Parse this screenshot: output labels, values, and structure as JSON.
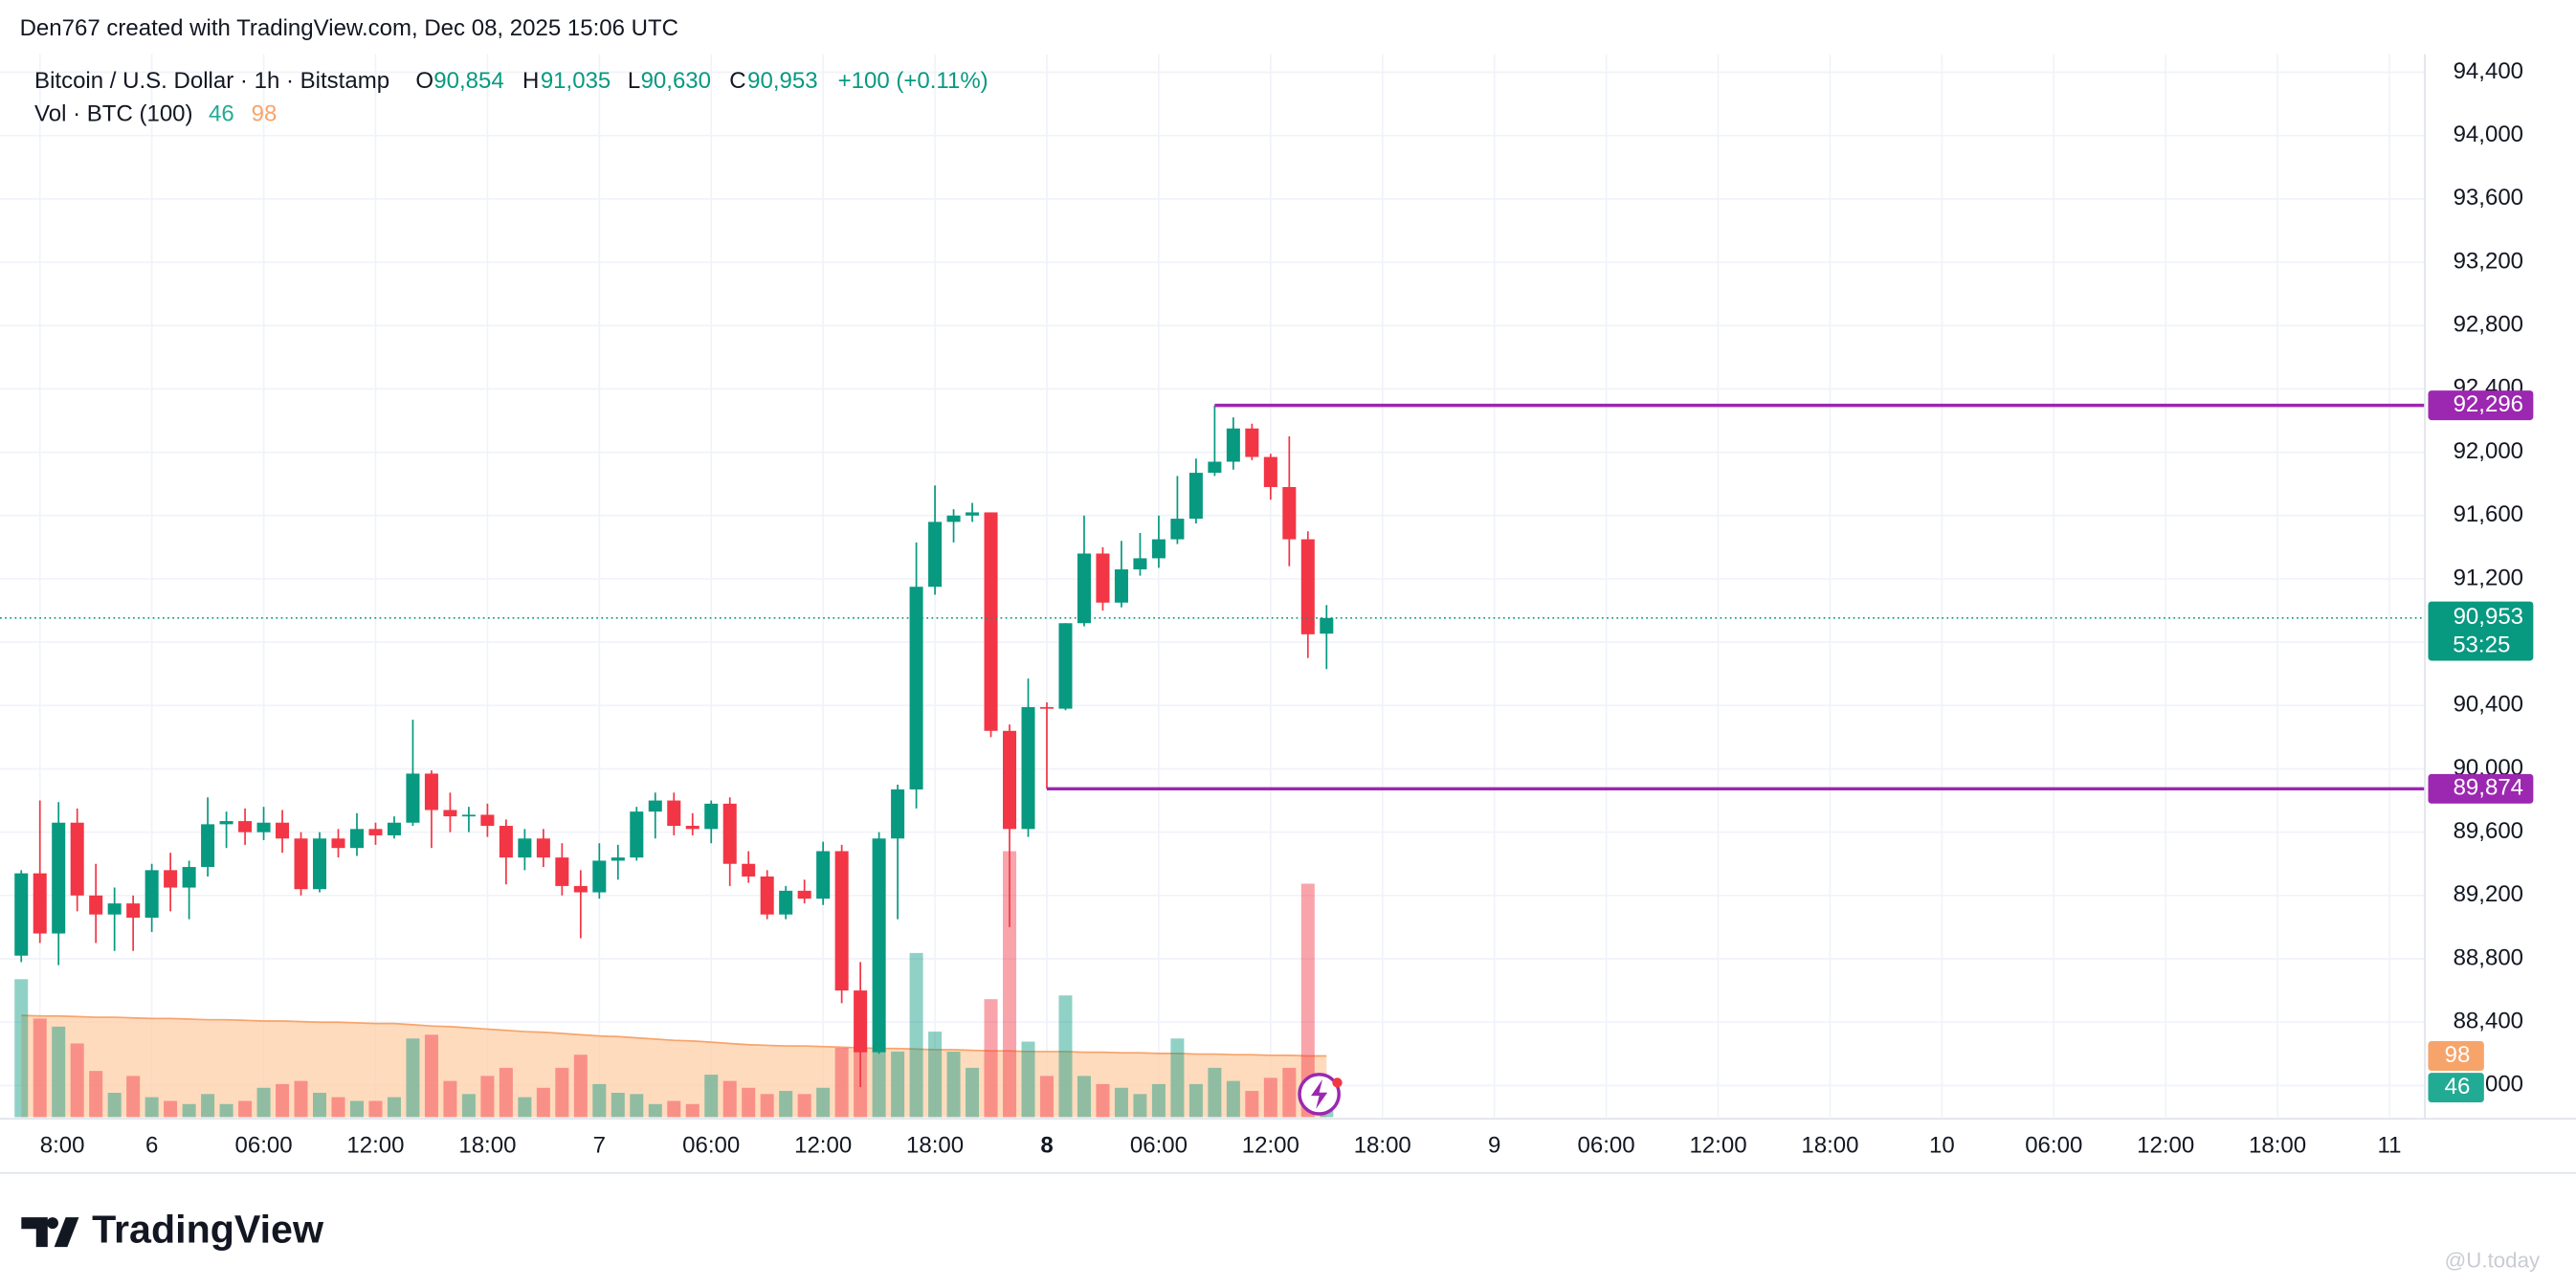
{
  "header": {
    "credit": "Den767 created with TradingView.com, Dec 08, 2025 15:06 UTC",
    "logo": "TradingView",
    "watermark": "@U.today"
  },
  "chart_data": {
    "type": "candlestick",
    "legend": {
      "symbol": "Bitcoin / U.S. Dollar · 1h · Bitstamp",
      "o": "O",
      "o_value": "90,854",
      "h": "H",
      "h_value": "91,035",
      "l": "L",
      "l_value": "90,630",
      "c": "C",
      "c_value": "90,953",
      "change": "+100 (+0.11%)",
      "vol": "Vol · BTC (100)",
      "vol_value": "46",
      "vol_ma": "98"
    },
    "up_color": "#089981",
    "down_color": "#f23645",
    "ma_color": "#f7a46b",
    "x": [
      0,
      1,
      2,
      3,
      4,
      5,
      6,
      7,
      8,
      9,
      10,
      11,
      12,
      13,
      14,
      15,
      16,
      17,
      18,
      19,
      20,
      21,
      22,
      23,
      24,
      25,
      26,
      27,
      28,
      29,
      30,
      31,
      32,
      33,
      34,
      35,
      36,
      37,
      38,
      39,
      40,
      41,
      42,
      43,
      44,
      45,
      46,
      47,
      48,
      49,
      50,
      51,
      52,
      53,
      54,
      55,
      56,
      57,
      58,
      59,
      60,
      61,
      62,
      63,
      64,
      65,
      66,
      67,
      68,
      69,
      70
    ],
    "open": [
      88820,
      89340,
      88960,
      89660,
      89200,
      89080,
      89150,
      89060,
      89360,
      89250,
      89380,
      89650,
      89670,
      89600,
      89660,
      89560,
      89240,
      89560,
      89500,
      89620,
      89580,
      89660,
      89970,
      89740,
      89700,
      89710,
      89640,
      89440,
      89560,
      89440,
      89260,
      89220,
      89420,
      89440,
      89730,
      89800,
      89640,
      89620,
      89780,
      89400,
      89320,
      89080,
      89230,
      89180,
      89480,
      88600,
      88210,
      89560,
      89870,
      91150,
      91560,
      91600,
      91620,
      90240,
      89620,
      90390,
      90380,
      90920,
      91360,
      91050,
      91260,
      91330,
      91450,
      91580,
      91870,
      91940,
      92150,
      91970,
      91780,
      91450,
      90854
    ],
    "high": [
      89360,
      89800,
      89790,
      89750,
      89400,
      89250,
      89200,
      89400,
      89470,
      89420,
      89820,
      89730,
      89750,
      89760,
      89740,
      89600,
      89600,
      89620,
      89720,
      89660,
      89700,
      90310,
      89990,
      89850,
      89760,
      89780,
      89680,
      89620,
      89620,
      89530,
      89360,
      89530,
      89520,
      89760,
      89850,
      89850,
      89720,
      89800,
      89820,
      89480,
      89360,
      89260,
      89300,
      89540,
      89520,
      88780,
      89600,
      89900,
      91430,
      91790,
      91640,
      91680,
      91620,
      90280,
      90570,
      90420,
      90920,
      91600,
      91400,
      91440,
      91490,
      91600,
      91850,
      91960,
      92296,
      92220,
      92180,
      91990,
      92100,
      91500,
      91035
    ],
    "low": [
      88780,
      88900,
      88760,
      89100,
      88900,
      88850,
      88850,
      88970,
      89100,
      89050,
      89320,
      89500,
      89520,
      89550,
      89470,
      89200,
      89220,
      89440,
      89450,
      89520,
      89560,
      89640,
      89500,
      89600,
      89600,
      89570,
      89270,
      89360,
      89380,
      89200,
      88930,
      89180,
      89300,
      89420,
      89560,
      89580,
      89580,
      89530,
      89260,
      89280,
      89050,
      89050,
      89150,
      89140,
      88520,
      87990,
      88200,
      89050,
      89750,
      91100,
      91430,
      91560,
      90200,
      89000,
      89570,
      89874,
      90370,
      90900,
      91000,
      91020,
      91220,
      91270,
      91420,
      91550,
      91850,
      91890,
      91950,
      91700,
      91280,
      90700,
      90630
    ],
    "close": [
      89340,
      88960,
      89660,
      89200,
      89080,
      89150,
      89060,
      89360,
      89250,
      89380,
      89650,
      89670,
      89600,
      89660,
      89560,
      89240,
      89560,
      89500,
      89620,
      89580,
      89660,
      89970,
      89740,
      89700,
      89710,
      89640,
      89440,
      89560,
      89440,
      89260,
      89220,
      89420,
      89440,
      89730,
      89800,
      89640,
      89620,
      89780,
      89400,
      89320,
      89080,
      89230,
      89180,
      89480,
      88600,
      88210,
      89560,
      89870,
      91150,
      91560,
      91600,
      91620,
      90240,
      89620,
      90390,
      90380,
      90920,
      91360,
      91050,
      91260,
      91330,
      91450,
      91580,
      91870,
      91940,
      92150,
      91970,
      91780,
      91450,
      90850,
      90953
    ],
    "volume": [
      221,
      158,
      145,
      118,
      74,
      39,
      66,
      32,
      26,
      21,
      37,
      21,
      26,
      47,
      53,
      58,
      39,
      32,
      26,
      26,
      32,
      126,
      132,
      58,
      37,
      66,
      79,
      32,
      47,
      79,
      100,
      53,
      39,
      37,
      21,
      26,
      21,
      68,
      58,
      47,
      37,
      42,
      37,
      47,
      111,
      118,
      105,
      105,
      263,
      137,
      105,
      79,
      189,
      426,
      121,
      66,
      195,
      66,
      53,
      47,
      37,
      53,
      126,
      53,
      79,
      58,
      42,
      63,
      79,
      374,
      46
    ],
    "volume_ma": [
      163,
      162,
      162,
      161,
      160,
      160,
      159,
      158,
      158,
      157,
      156,
      156,
      155,
      154,
      154,
      153,
      152,
      152,
      151,
      150,
      150,
      148,
      146,
      145,
      143,
      141,
      139,
      137,
      136,
      134,
      132,
      130,
      129,
      127,
      125,
      123,
      122,
      120,
      118,
      116,
      115,
      114,
      114,
      113,
      112,
      111,
      110,
      110,
      109,
      108,
      108,
      107,
      106,
      106,
      105,
      105,
      105,
      104,
      104,
      103,
      103,
      102,
      102,
      101,
      101,
      100,
      100,
      99,
      99,
      98,
      98
    ],
    "xlim": [
      -0.26,
      128.9
    ],
    "xticks": [
      {
        "value": 1,
        "label": "8:00"
      },
      {
        "value": 7,
        "label": "6"
      },
      {
        "value": 13,
        "label": "06:00"
      },
      {
        "value": 19,
        "label": "12:00"
      },
      {
        "value": 25,
        "label": "18:00"
      },
      {
        "value": 31,
        "label": "7"
      },
      {
        "value": 37,
        "label": "06:00"
      },
      {
        "value": 43,
        "label": "12:00"
      },
      {
        "value": 49,
        "label": "18:00"
      },
      {
        "value": 55,
        "label": "8"
      },
      {
        "value": 61,
        "label": "06:00"
      },
      {
        "value": 67,
        "label": "12:00"
      },
      {
        "value": 73,
        "label": "18:00"
      },
      {
        "value": 79,
        "label": "9"
      },
      {
        "value": 85,
        "label": "06:00"
      },
      {
        "value": 91,
        "label": "12:00"
      },
      {
        "value": 97,
        "label": "18:00"
      },
      {
        "value": 103,
        "label": "10"
      },
      {
        "value": 109,
        "label": "06:00"
      },
      {
        "value": 115,
        "label": "12:00"
      },
      {
        "value": 121,
        "label": "18:00"
      },
      {
        "value": 127,
        "label": "11"
      }
    ],
    "bold_xtick": 9,
    "ylim": [
      87800,
      94514
    ],
    "yticks": [
      {
        "value": 88000,
        "label": "88,000"
      },
      {
        "value": 88400,
        "label": "88,400"
      },
      {
        "value": 88800,
        "label": "88,800"
      },
      {
        "value": 89200,
        "label": "89,200"
      },
      {
        "value": 89600,
        "label": "89,600"
      },
      {
        "value": 90000,
        "label": "90,000"
      },
      {
        "value": 90400,
        "label": "90,400"
      },
      {
        "value": 90800,
        "label": "90,800"
      },
      {
        "value": 91200,
        "label": "91,200"
      },
      {
        "value": 91600,
        "label": "91,600"
      },
      {
        "value": 92000,
        "label": "92,000"
      },
      {
        "value": 92400,
        "label": "92,400"
      },
      {
        "value": 92800,
        "label": "92,800"
      },
      {
        "value": 93200,
        "label": "93,200"
      },
      {
        "value": 93600,
        "label": "93,600"
      },
      {
        "value": 94000,
        "label": "94,000"
      },
      {
        "value": 94400,
        "label": "94,400"
      }
    ],
    "grid": true,
    "hlines": [
      {
        "value": 92296,
        "label": "92,296",
        "x": 64
      },
      {
        "value": 89874,
        "label": "89,874",
        "x": 55
      }
    ],
    "hline_color": "#9c27b0",
    "last_price": {
      "value": 90953,
      "label": "90,953",
      "countdown": "53:25"
    }
  }
}
